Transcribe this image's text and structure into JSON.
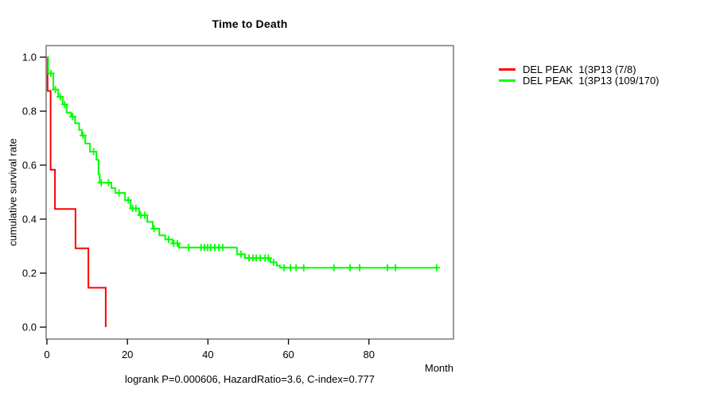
{
  "chart_data": {
    "type": "line",
    "subtype": "kaplan-meier-step",
    "title": "Time to Death",
    "xlabel": "Month",
    "ylabel": "cumulative survival rate",
    "annotation": "logrank P=0.000606, HazardRatio=3.6, C-index=0.777",
    "x_ticks": [
      0,
      20,
      40,
      60,
      80
    ],
    "y_ticks": [
      0.0,
      0.2,
      0.4,
      0.6,
      0.8,
      1.0
    ],
    "xlim": [
      0,
      101
    ],
    "ylim": [
      0,
      1
    ],
    "grid": false,
    "legend_position": "right-outside",
    "axis_color": "#808080",
    "tick_color": "#000000",
    "series": [
      {
        "name": "group-high-risk",
        "label": "DEL PEAK  1(3P13 (7/8)",
        "color": "#ff0000",
        "steps": [
          [
            0,
            1.0
          ],
          [
            0.15,
            0.875
          ],
          [
            0.9,
            0.583
          ],
          [
            2.0,
            0.4375
          ],
          [
            7.1,
            0.2917
          ],
          [
            10.3,
            0.1458
          ],
          [
            14.6,
            0.0
          ]
        ],
        "censor_times": []
      },
      {
        "name": "group-low-risk",
        "label": "DEL PEAK  1(3P13 (109/170)",
        "color": "#00ff00",
        "steps": [
          [
            0,
            1.0
          ],
          [
            0.3,
            0.94
          ],
          [
            1.6,
            0.88
          ],
          [
            2.8,
            0.853
          ],
          [
            3.9,
            0.825
          ],
          [
            4.9,
            0.795
          ],
          [
            6.0,
            0.78
          ],
          [
            7.0,
            0.755
          ],
          [
            8.0,
            0.73
          ],
          [
            8.7,
            0.71
          ],
          [
            9.5,
            0.68
          ],
          [
            10.7,
            0.65
          ],
          [
            12.3,
            0.62
          ],
          [
            12.8,
            0.566
          ],
          [
            13.1,
            0.535
          ],
          [
            16.0,
            0.515
          ],
          [
            17.0,
            0.497
          ],
          [
            19.4,
            0.47
          ],
          [
            20.8,
            0.44
          ],
          [
            22.9,
            0.415
          ],
          [
            24.9,
            0.39
          ],
          [
            26.3,
            0.365
          ],
          [
            27.9,
            0.34
          ],
          [
            29.4,
            0.325
          ],
          [
            31.2,
            0.31
          ],
          [
            32.8,
            0.295
          ],
          [
            47.2,
            0.27
          ],
          [
            49.2,
            0.256
          ],
          [
            55.5,
            0.24
          ],
          [
            57.1,
            0.228
          ],
          [
            57.9,
            0.22
          ],
          [
            97.2,
            0.22
          ]
        ],
        "censor_times": [
          1.0,
          2.1,
          3.3,
          4.4,
          6.4,
          9.0,
          11.6,
          13.5,
          15.3,
          17.9,
          20.2,
          21.3,
          22.1,
          23.3,
          24.3,
          26.6,
          30.2,
          31.5,
          32.4,
          35.2,
          38.3,
          39.1,
          39.9,
          40.7,
          41.7,
          42.7,
          43.7,
          48.2,
          50.2,
          51.2,
          52.0,
          53.0,
          54.2,
          55.0,
          56.3,
          58.9,
          60.5,
          61.9,
          63.8,
          71.3,
          75.3,
          77.7,
          84.6,
          86.6,
          96.8
        ]
      }
    ]
  }
}
